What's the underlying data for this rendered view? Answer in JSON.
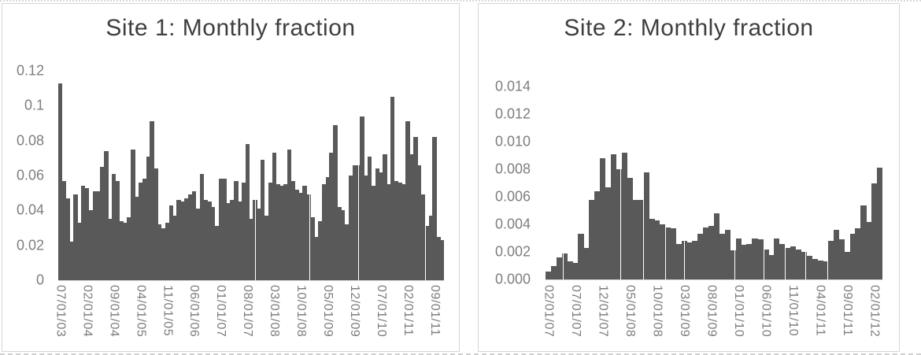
{
  "page": {
    "background_color": "#ffffff",
    "panel_border_color": "#d6d6d6",
    "title_color": "#3f3f3f",
    "axis_label_color": "#7e7e7e"
  },
  "chart_data": [
    {
      "type": "bar",
      "title": "Site 1: Monthly fraction",
      "bar_color": "#595959",
      "grid": "off",
      "legend": "none",
      "ylim": [
        0,
        0.12
      ],
      "y_tick_labels": [
        "0.12",
        "0.1",
        "0.08",
        "0.06",
        "0.04",
        "0.02",
        "0"
      ],
      "x_tick_labels": [
        "07/01/03",
        "02/01/04",
        "09/01/04",
        "04/01/05",
        "11/01/05",
        "06/01/06",
        "01/01/07",
        "08/01/07",
        "03/01/08",
        "10/01/08",
        "05/01/09",
        "12/01/09",
        "07/01/10",
        "02/01/11",
        "09/01/11"
      ],
      "x_tick_every_n_bars": 7,
      "x_start": "07/2003",
      "x_interval": "1 month",
      "values": [
        0.113,
        0.057,
        0.047,
        0.022,
        0.049,
        0.033,
        0.054,
        0.053,
        0.04,
        0.051,
        0.051,
        0.065,
        0.074,
        0.035,
        0.061,
        0.057,
        0.034,
        0.033,
        0.036,
        0.075,
        0.048,
        0.056,
        0.058,
        0.071,
        0.091,
        0.064,
        0.032,
        0.03,
        0.033,
        0.043,
        0.037,
        0.046,
        0.045,
        0.047,
        0.049,
        0.051,
        0.041,
        0.061,
        0.046,
        0.045,
        0.042,
        0.031,
        0.058,
        0.058,
        0.044,
        0.046,
        0.057,
        0.045,
        0.056,
        0.078,
        0.035,
        0.046,
        0.041,
        0.069,
        0.037,
        0.056,
        0.073,
        0.055,
        0.054,
        0.055,
        0.075,
        0.057,
        0.052,
        0.05,
        0.054,
        0.049,
        0.036,
        0.025,
        0.034,
        0.055,
        0.059,
        0.073,
        0.089,
        0.042,
        0.04,
        0.032,
        0.06,
        0.066,
        0.066,
        0.094,
        0.06,
        0.071,
        0.054,
        0.064,
        0.062,
        0.072,
        0.055,
        0.105,
        0.057,
        0.056,
        0.055,
        0.091,
        0.072,
        0.082,
        0.066,
        0.049,
        0.031,
        0.037,
        0.082,
        0.025,
        0.023
      ],
      "seams_after_bar": [
        51.5,
        65.8,
        78.6,
        96
      ]
    },
    {
      "type": "bar",
      "title": "Site 2: Monthly fraction",
      "bar_color": "#595959",
      "grid": "off",
      "legend": "none",
      "ylim": [
        0,
        0.014
      ],
      "y_tick_labels": [
        "0.014",
        "0.012",
        "0.010",
        "0.008",
        "0.006",
        "0.004",
        "0.002",
        "0.000"
      ],
      "x_tick_labels": [
        "02/01/07",
        "07/01/07",
        "12/01/07",
        "05/01/08",
        "10/01/08",
        "03/01/09",
        "08/01/09",
        "01/01/10",
        "06/01/10",
        "11/01/10",
        "04/01/11",
        "09/01/11",
        "02/01/12"
      ],
      "x_tick_every_n_bars": 5,
      "x_start": "02/2007",
      "x_interval": "1 month",
      "values": [
        0.0006,
        0.001,
        0.0016,
        0.0019,
        0.0013,
        0.0012,
        0.0033,
        0.0023,
        0.0058,
        0.0064,
        0.0088,
        0.0067,
        0.0091,
        0.008,
        0.0092,
        0.0074,
        0.0058,
        0.0058,
        0.0078,
        0.0044,
        0.0043,
        0.004,
        0.0038,
        0.0037,
        0.0026,
        0.0028,
        0.0027,
        0.0028,
        0.0033,
        0.0038,
        0.0039,
        0.0048,
        0.0033,
        0.0036,
        0.0021,
        0.003,
        0.0025,
        0.0026,
        0.003,
        0.0029,
        0.0022,
        0.0018,
        0.003,
        0.0026,
        0.0023,
        0.0024,
        0.0022,
        0.002,
        0.0017,
        0.0015,
        0.0014,
        0.0013,
        0.0028,
        0.0036,
        0.0029,
        0.002,
        0.0033,
        0.0037,
        0.0054,
        0.0042,
        0.007,
        0.0081
      ],
      "seams_after_bar": [
        3.2,
        13.8,
        18,
        22,
        25.5,
        34.8,
        40.1,
        44,
        47.8,
        51.9
      ]
    }
  ]
}
